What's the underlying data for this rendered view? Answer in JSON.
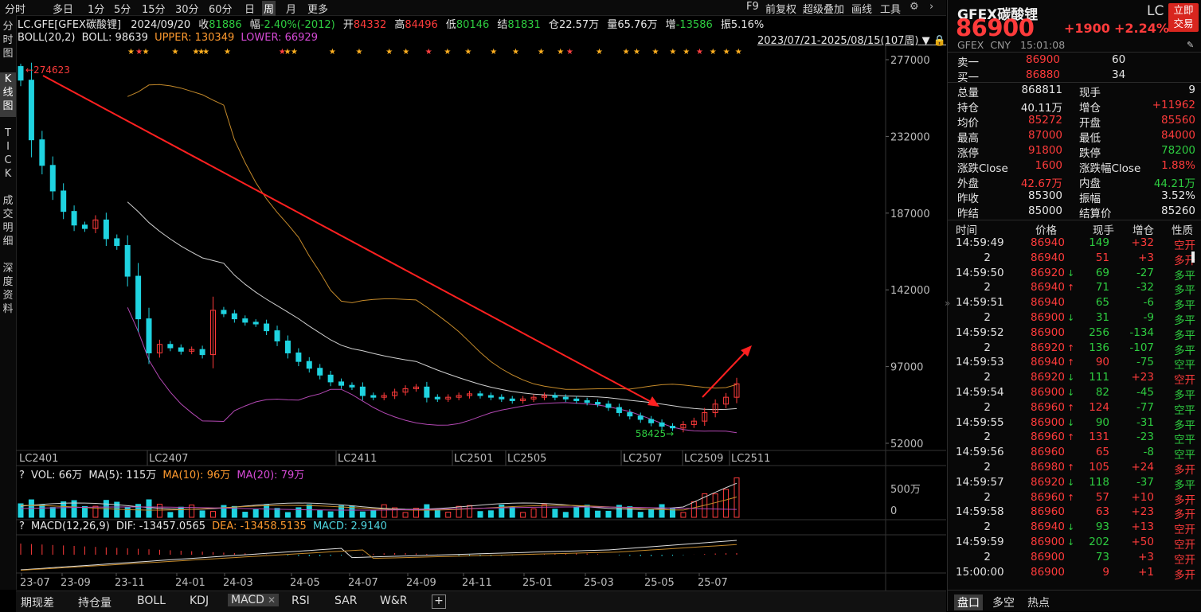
{
  "toolbar": {
    "periods": [
      "分时",
      "多日",
      "1分",
      "5分",
      "15分",
      "30分",
      "60分",
      "日",
      "周",
      "月",
      "更多"
    ],
    "active_period": "周",
    "right_items": [
      "F9",
      "前复权",
      "超级叠加",
      "画线",
      "工具"
    ]
  },
  "left_nav": {
    "tabs": [
      "分\n时\n图",
      "K\n线\n图",
      "T\nI\nC\nK",
      "成\n交\n明\n细",
      "深\n度\n资\n料"
    ],
    "active": 1
  },
  "info_line": {
    "symbol": "LC.GFE[GFEX碳酸锂]",
    "date": "2024/09/20",
    "close_label": "收",
    "close": "81886",
    "change_label": "幅",
    "change": "-2.40%(-2012)",
    "open_label": "开",
    "open": "84332",
    "high_label": "高",
    "high": "84496",
    "low_label": "低",
    "low": "80146",
    "settle_label": "结",
    "settle": "81831",
    "oi_label": "仓",
    "oi": "22.57万",
    "vol_label": "量",
    "vol": "65.76万",
    "inc_label": "增",
    "inc": "-13586",
    "amp_label": "振",
    "amp": "5.16%"
  },
  "boll_line": {
    "name": "BOLL(20,2)",
    "boll": "BOLL: 98639",
    "upper": "UPPER: 130349",
    "lower": "LOWER: 66929",
    "range": "2023/07/21-2025/08/15(107周)"
  },
  "main_chart": {
    "y_ticks": [
      "277000",
      "232000",
      "187000",
      "142000",
      "97000",
      "52000"
    ],
    "contract_labels": [
      "LC2401",
      "LC2407",
      "LC2411",
      "LC2501",
      "LC2505",
      "LC2507",
      "LC2509",
      "LC2511"
    ],
    "high_marker": "274623",
    "low_marker": "58425",
    "colors": {
      "up": "#ff3b3b",
      "down": "#1fd3e0",
      "mid": "#d0d0d0",
      "upper": "#c58a2a",
      "lower": "#b448b4",
      "trend": "#ff2020"
    }
  },
  "chart_data": {
    "type": "candlestick",
    "period": "weekly",
    "y_range": [
      52000,
      277000
    ],
    "high": 274623,
    "low": 58425,
    "last_close": 86900,
    "candles_close_approx": [
      265000,
      230000,
      215000,
      200000,
      188000,
      180000,
      178000,
      183000,
      172000,
      168000,
      150000,
      125000,
      105000,
      110000,
      108000,
      106000,
      107000,
      104000,
      130000,
      128000,
      125000,
      123000,
      122000,
      118000,
      112000,
      105000,
      100000,
      96000,
      92000,
      88000,
      86000,
      85000,
      80000,
      79000,
      80000,
      82000,
      84000,
      85000,
      79000,
      78000,
      79000,
      80000,
      81000,
      80000,
      79000,
      78000,
      77000,
      78000,
      79000,
      80000,
      79000,
      78000,
      77000,
      76000,
      75000,
      73000,
      70000,
      68000,
      66000,
      64000,
      62000,
      61000,
      63000,
      65000,
      70000,
      75000,
      79000,
      86900
    ],
    "volume_ticks": [
      "500万",
      "0"
    ],
    "macd_values": {
      "dif": "-13457.0565",
      "dea": "-13458.5135",
      "macd": "2.9140"
    }
  },
  "vol_panel": {
    "title": "VOL: 66万",
    "ma5": "MA(5): 115万",
    "ma10": "MA(10): 96万",
    "ma20": "MA(20): 79万",
    "ticks": [
      "500万",
      "0"
    ]
  },
  "macd_panel": {
    "title": "MACD(12,26,9)",
    "dif": "DIF: -13457.0565",
    "dea": "DEA: -13458.5135",
    "macd": "MACD: 2.9140"
  },
  "x_axis_dates": [
    "23-07",
    "23-09",
    "23-11",
    "24-01",
    "24-03",
    "24-05",
    "24-07",
    "24-09",
    "24-11",
    "25-01",
    "25-03",
    "25-05",
    "25-07"
  ],
  "bottom_tabs": [
    "期现差",
    "持仓量",
    "BOLL",
    "KDJ",
    "MACD",
    "RSI",
    "SAR",
    "W&R"
  ],
  "bottom_active": "MACD",
  "quote": {
    "name": "GFEX碳酸锂",
    "code": "LC",
    "trade_button": "立即\n交易",
    "price": "86900",
    "change": "+1900",
    "change_pct": "+2.24%",
    "exchange": "GFEX",
    "currency": "CNY",
    "time": "15:01:08",
    "sell1_label": "卖一",
    "sell1_price": "86900",
    "sell1_vol": "60",
    "buy1_label": "买一",
    "buy1_price": "86880",
    "buy1_vol": "34",
    "stats": [
      {
        "l1": "总量",
        "v1": "868811",
        "l2": "现手",
        "v2": "9",
        "c1": "white",
        "c2": "white"
      },
      {
        "l1": "持仓",
        "v1": "40.11万",
        "l2": "增仓",
        "v2": "+11962",
        "c1": "white",
        "c2": "red"
      },
      {
        "l1": "均价",
        "v1": "85272",
        "l2": "开盘",
        "v2": "85560",
        "c1": "red",
        "c2": "red"
      },
      {
        "l1": "最高",
        "v1": "87000",
        "l2": "最低",
        "v2": "84000",
        "c1": "red",
        "c2": "red"
      },
      {
        "l1": "涨停",
        "v1": "91800",
        "l2": "跌停",
        "v2": "78200",
        "c1": "red",
        "c2": "green"
      },
      {
        "l1": "涨跌Close",
        "v1": "1600",
        "l2": "涨跌幅Close",
        "v2": "1.88%",
        "c1": "red",
        "c2": "red"
      },
      {
        "l1": "外盘",
        "v1": "42.67万",
        "l2": "内盘",
        "v2": "44.21万",
        "c1": "red",
        "c2": "green"
      },
      {
        "l1": "昨收",
        "v1": "85300",
        "l2": "振幅",
        "v2": "3.52%",
        "c1": "white",
        "c2": "white"
      },
      {
        "l1": "昨结",
        "v1": "85000",
        "l2": "结算价",
        "v2": "85260",
        "c1": "white",
        "c2": "white"
      }
    ]
  },
  "trades_header": {
    "time": "时间",
    "price": "价格",
    "vol": "现手",
    "oi": "增仓",
    "type": "性质"
  },
  "trades": [
    {
      "time": "14:59:49",
      "price": "86940",
      "arrow": "",
      "vol": "149",
      "oi": "+32",
      "type": "空开",
      "pc": "red",
      "tc": "green",
      "oc": "red"
    },
    {
      "time": "2",
      "price": "86940",
      "arrow": "",
      "vol": "51",
      "oi": "+3",
      "type": "多开",
      "pc": "red",
      "tc": "red",
      "oc": "red"
    },
    {
      "time": "14:59:50",
      "price": "86920",
      "arrow": "↓",
      "vol": "69",
      "oi": "-27",
      "type": "多平",
      "pc": "red",
      "tc": "green",
      "oc": "green"
    },
    {
      "time": "2",
      "price": "86940",
      "arrow": "↑",
      "vol": "71",
      "oi": "-32",
      "type": "多平",
      "pc": "red",
      "tc": "green",
      "oc": "green"
    },
    {
      "time": "14:59:51",
      "price": "86940",
      "arrow": "",
      "vol": "65",
      "oi": "-6",
      "type": "多平",
      "pc": "red",
      "tc": "green",
      "oc": "green"
    },
    {
      "time": "2",
      "price": "86900",
      "arrow": "↓",
      "vol": "31",
      "oi": "-9",
      "type": "多平",
      "pc": "red",
      "tc": "green",
      "oc": "green"
    },
    {
      "time": "14:59:52",
      "price": "86900",
      "arrow": "",
      "vol": "256",
      "oi": "-134",
      "type": "多平",
      "pc": "red",
      "tc": "green",
      "oc": "green"
    },
    {
      "time": "2",
      "price": "86920",
      "arrow": "↑",
      "vol": "136",
      "oi": "-107",
      "type": "多平",
      "pc": "red",
      "tc": "green",
      "oc": "green"
    },
    {
      "time": "14:59:53",
      "price": "86940",
      "arrow": "↑",
      "vol": "90",
      "oi": "-75",
      "type": "空平",
      "pc": "red",
      "tc": "red",
      "oc": "green"
    },
    {
      "time": "2",
      "price": "86920",
      "arrow": "↓",
      "vol": "111",
      "oi": "+23",
      "type": "空开",
      "pc": "red",
      "tc": "green",
      "oc": "red"
    },
    {
      "time": "14:59:54",
      "price": "86900",
      "arrow": "↓",
      "vol": "82",
      "oi": "-45",
      "type": "多平",
      "pc": "red",
      "tc": "green",
      "oc": "green"
    },
    {
      "time": "2",
      "price": "86960",
      "arrow": "↑",
      "vol": "124",
      "oi": "-77",
      "type": "空平",
      "pc": "red",
      "tc": "red",
      "oc": "green"
    },
    {
      "time": "14:59:55",
      "price": "86900",
      "arrow": "↓",
      "vol": "90",
      "oi": "-31",
      "type": "多平",
      "pc": "red",
      "tc": "green",
      "oc": "green"
    },
    {
      "time": "2",
      "price": "86960",
      "arrow": "↑",
      "vol": "131",
      "oi": "-23",
      "type": "空平",
      "pc": "red",
      "tc": "red",
      "oc": "green"
    },
    {
      "time": "14:59:56",
      "price": "86960",
      "arrow": "",
      "vol": "65",
      "oi": "-8",
      "type": "空平",
      "pc": "red",
      "tc": "red",
      "oc": "green"
    },
    {
      "time": "2",
      "price": "86980",
      "arrow": "↑",
      "vol": "105",
      "oi": "+24",
      "type": "多开",
      "pc": "red",
      "tc": "red",
      "oc": "red"
    },
    {
      "time": "14:59:57",
      "price": "86920",
      "arrow": "↓",
      "vol": "118",
      "oi": "-37",
      "type": "多平",
      "pc": "red",
      "tc": "green",
      "oc": "green"
    },
    {
      "time": "2",
      "price": "86960",
      "arrow": "↑",
      "vol": "57",
      "oi": "+10",
      "type": "多开",
      "pc": "red",
      "tc": "red",
      "oc": "red"
    },
    {
      "time": "14:59:58",
      "price": "86960",
      "arrow": "",
      "vol": "63",
      "oi": "+23",
      "type": "多开",
      "pc": "red",
      "tc": "red",
      "oc": "red"
    },
    {
      "time": "2",
      "price": "86940",
      "arrow": "↓",
      "vol": "93",
      "oi": "+13",
      "type": "空开",
      "pc": "red",
      "tc": "green",
      "oc": "red"
    },
    {
      "time": "14:59:59",
      "price": "86900",
      "arrow": "↓",
      "vol": "202",
      "oi": "+50",
      "type": "空开",
      "pc": "red",
      "tc": "green",
      "oc": "red"
    },
    {
      "time": "2",
      "price": "86900",
      "arrow": "",
      "vol": "73",
      "oi": "+3",
      "type": "空开",
      "pc": "red",
      "tc": "green",
      "oc": "red"
    },
    {
      "time": "15:00:00",
      "price": "86900",
      "arrow": "",
      "vol": "9",
      "oi": "+1",
      "type": "多开",
      "pc": "red",
      "tc": "red",
      "oc": "red"
    }
  ],
  "right_tabs": [
    "盘口",
    "多空",
    "热点"
  ],
  "right_active": "盘口"
}
